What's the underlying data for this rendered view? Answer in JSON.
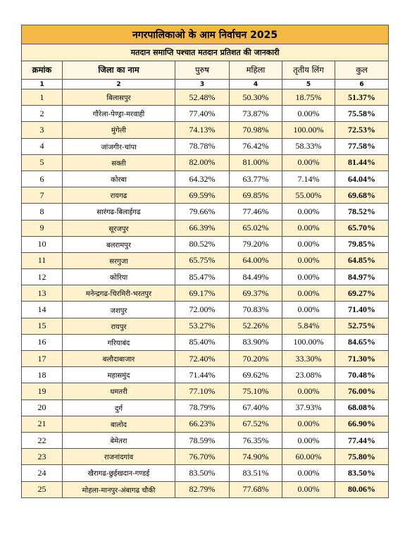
{
  "title": "नगरपालिकाओ के आम निर्वाचन 2025",
  "subtitle": "मतदान समाप्ति पश्चात मतदान प्रतिशत की जानकारी",
  "header": {
    "columns": [
      "क्रमांक",
      "जिला का नाम",
      "पुरुष",
      "महिला",
      "तृतीय लिंग",
      "कुल"
    ],
    "numbers": [
      "1",
      "2",
      "3",
      "4",
      "5",
      "6"
    ]
  },
  "table": {
    "rows": [
      [
        "1",
        "बिलासपुर",
        "52.48%",
        "50.30%",
        "18.75%",
        "51.37%"
      ],
      [
        "2",
        "गौरेला-पेण्ड्रा-मरवाही",
        "77.40%",
        "73.87%",
        "0.00%",
        "75.58%"
      ],
      [
        "3",
        "मुंगेली",
        "74.13%",
        "70.98%",
        "100.00%",
        "72.53%"
      ],
      [
        "4",
        "जांजगीर-चांपा",
        "78.78%",
        "76.42%",
        "58.33%",
        "77.58%"
      ],
      [
        "5",
        "सक्ती",
        "82.00%",
        "81.00%",
        "0.00%",
        "81.44%"
      ],
      [
        "6",
        "कोरबा",
        "64.32%",
        "63.77%",
        "7.14%",
        "64.04%"
      ],
      [
        "7",
        "रायगढ",
        "69.59%",
        "69.85%",
        "55.00%",
        "69.68%"
      ],
      [
        "8",
        "सारंगढ-बिलाईगढ",
        "79.66%",
        "77.46%",
        "0.00%",
        "78.52%"
      ],
      [
        "9",
        "सूरजपुर",
        "66.39%",
        "65.02%",
        "0.00%",
        "65.70%"
      ],
      [
        "10",
        "बलरामपुर",
        "80.52%",
        "79.20%",
        "0.00%",
        "79.85%"
      ],
      [
        "11",
        "सरगुजा",
        "65.75%",
        "64.00%",
        "0.00%",
        "64.85%"
      ],
      [
        "12",
        "कोरिया",
        "85.47%",
        "84.49%",
        "0.00%",
        "84.97%"
      ],
      [
        "13",
        "मनेन्द्रगढ-चिरमिरी-भरतपुर",
        "69.17%",
        "69.37%",
        "0.00%",
        "69.27%"
      ],
      [
        "14",
        "जशपुर",
        "72.00%",
        "70.83%",
        "0.00%",
        "71.40%"
      ],
      [
        "15",
        "रायपुर",
        "53.27%",
        "52.26%",
        "5.84%",
        "52.75%"
      ],
      [
        "16",
        "गरियाबंद",
        "85.40%",
        "83.90%",
        "100.00%",
        "84.65%"
      ],
      [
        "17",
        "बलौदाबाजार",
        "72.40%",
        "70.20%",
        "33.30%",
        "71.30%"
      ],
      [
        "18",
        "महासमुंद",
        "71.44%",
        "69.62%",
        "23.08%",
        "70.48%"
      ],
      [
        "19",
        "धमतरी",
        "77.10%",
        "75.10%",
        "0.00%",
        "76.00%"
      ],
      [
        "20",
        "दुर्ग",
        "78.79%",
        "67.40%",
        "37.93%",
        "68.08%"
      ],
      [
        "21",
        "बालोद",
        "66.23%",
        "67.52%",
        "0.00%",
        "66.90%"
      ],
      [
        "22",
        "बेमेतरा",
        "78.59%",
        "76.35%",
        "0.00%",
        "77.44%"
      ],
      [
        "23",
        "राजनांदगांव",
        "76.70%",
        "74.90%",
        "60.00%",
        "75.80%"
      ],
      [
        "24",
        "खैरागढ-छुईखदान-गण्डई",
        "83.50%",
        "83.51%",
        "0.00%",
        "83.50%"
      ],
      [
        "25",
        "मोहला-मानपुर-अंबागढ चौकी",
        "82.79%",
        "77.68%",
        "0.00%",
        "80.06%"
      ]
    ]
  }
}
